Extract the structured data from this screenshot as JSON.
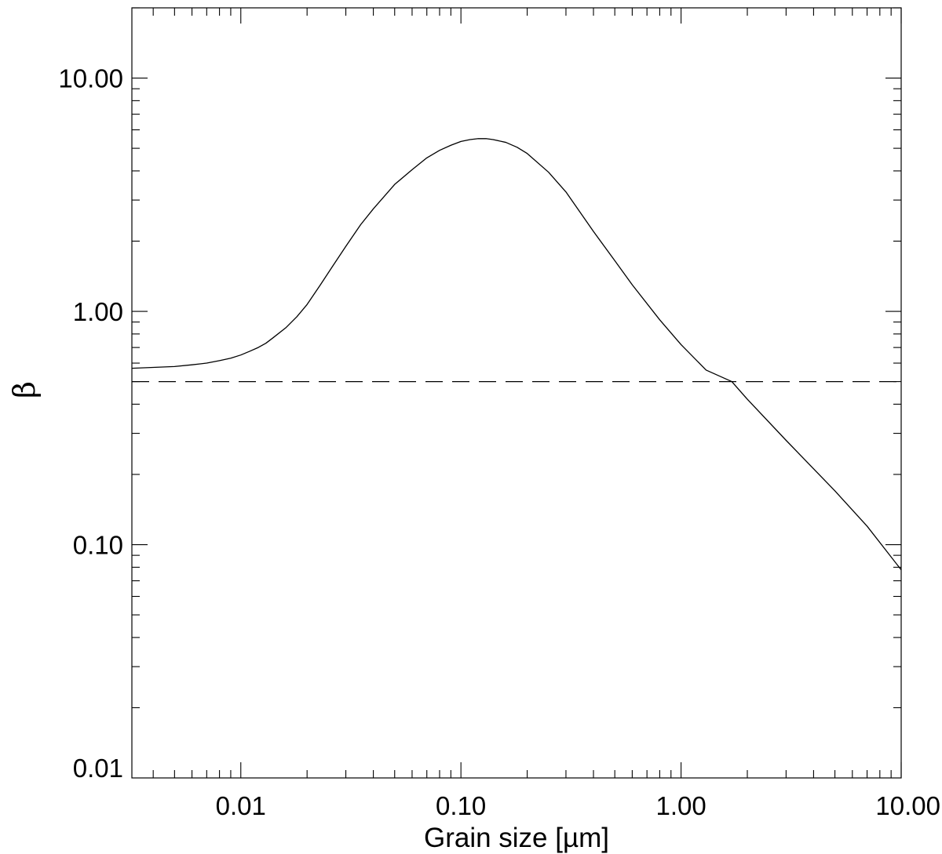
{
  "chart_data": {
    "type": "line",
    "title": "",
    "xlabel": "Grain size [µm]",
    "ylabel": "β",
    "xscale": "log",
    "yscale": "log",
    "xlim": [
      0.0032,
      10.0
    ],
    "ylim": [
      0.01,
      20.0
    ],
    "grid": false,
    "legend": "none",
    "x_ticks": [
      {
        "value": 0.01,
        "label": "0.01"
      },
      {
        "value": 0.1,
        "label": "0.10"
      },
      {
        "value": 1.0,
        "label": "1.00"
      },
      {
        "value": 10.0,
        "label": "10.00"
      }
    ],
    "y_ticks": [
      {
        "value": 0.01,
        "label": "0.01"
      },
      {
        "value": 0.1,
        "label": "0.10"
      },
      {
        "value": 1.0,
        "label": "1.00"
      },
      {
        "value": 10.0,
        "label": "10.00"
      }
    ],
    "series": [
      {
        "style": "solid",
        "color": "#000000",
        "x": [
          0.0032,
          0.004,
          0.005,
          0.006,
          0.007,
          0.008,
          0.009,
          0.01,
          0.011,
          0.012,
          0.013,
          0.014,
          0.016,
          0.018,
          0.02,
          0.023,
          0.026,
          0.03,
          0.035,
          0.04,
          0.05,
          0.06,
          0.07,
          0.08,
          0.09,
          0.1,
          0.11,
          0.12,
          0.13,
          0.14,
          0.16,
          0.18,
          0.2,
          0.25,
          0.3,
          0.4,
          0.5,
          0.6,
          0.8,
          1.0,
          1.3,
          1.7,
          2.0,
          3.0,
          5.0,
          7.0,
          10.0
        ],
        "y": [
          0.57,
          0.575,
          0.58,
          0.59,
          0.6,
          0.615,
          0.63,
          0.65,
          0.675,
          0.7,
          0.73,
          0.77,
          0.85,
          0.95,
          1.07,
          1.3,
          1.55,
          1.9,
          2.35,
          2.75,
          3.5,
          4.05,
          4.55,
          4.9,
          5.15,
          5.35,
          5.45,
          5.5,
          5.5,
          5.45,
          5.3,
          5.05,
          4.75,
          3.95,
          3.25,
          2.2,
          1.65,
          1.3,
          0.92,
          0.72,
          0.56,
          0.5,
          0.42,
          0.28,
          0.17,
          0.12,
          0.078
        ]
      },
      {
        "style": "dashed",
        "color": "#000000",
        "x": [
          0.0032,
          10.0
        ],
        "y": [
          0.5,
          0.5
        ]
      }
    ]
  }
}
